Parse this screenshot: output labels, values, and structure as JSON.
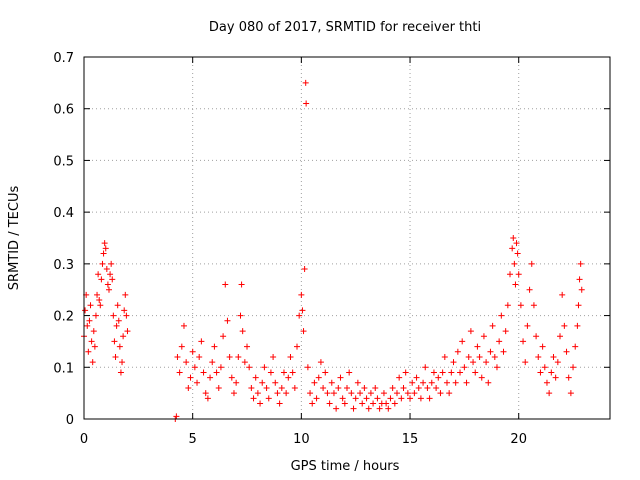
{
  "chart_data": {
    "type": "scatter",
    "title": "Day 080 of 2017, SRMTID for receiver thti",
    "xlabel": "GPS time / hours",
    "ylabel": "SRMTID / TECUs",
    "xlim": [
      0,
      24.2
    ],
    "ylim": [
      0,
      0.7
    ],
    "xticks": [
      0,
      5,
      10,
      15,
      20
    ],
    "yticks": [
      0,
      0.1,
      0.2,
      0.3,
      0.4,
      0.5,
      0.6,
      0.7
    ],
    "grid": true,
    "marker": "+",
    "color": "#ff0000",
    "series": [
      {
        "name": "SRMTID",
        "points": [
          [
            0.0,
            0.16
          ],
          [
            0.05,
            0.21
          ],
          [
            0.1,
            0.24
          ],
          [
            0.15,
            0.18
          ],
          [
            0.2,
            0.13
          ],
          [
            0.25,
            0.19
          ],
          [
            0.3,
            0.22
          ],
          [
            0.35,
            0.15
          ],
          [
            0.4,
            0.11
          ],
          [
            0.45,
            0.17
          ],
          [
            0.5,
            0.14
          ],
          [
            0.55,
            0.2
          ],
          [
            0.6,
            0.24
          ],
          [
            0.65,
            0.28
          ],
          [
            0.7,
            0.23
          ],
          [
            0.75,
            0.22
          ],
          [
            0.8,
            0.27
          ],
          [
            0.85,
            0.3
          ],
          [
            0.9,
            0.32
          ],
          [
            0.95,
            0.34
          ],
          [
            1.0,
            0.33
          ],
          [
            1.05,
            0.29
          ],
          [
            1.1,
            0.26
          ],
          [
            1.15,
            0.25
          ],
          [
            1.2,
            0.28
          ],
          [
            1.25,
            0.3
          ],
          [
            1.3,
            0.27
          ],
          [
            1.35,
            0.2
          ],
          [
            1.4,
            0.15
          ],
          [
            1.45,
            0.12
          ],
          [
            1.5,
            0.18
          ],
          [
            1.55,
            0.22
          ],
          [
            1.6,
            0.19
          ],
          [
            1.65,
            0.14
          ],
          [
            1.7,
            0.09
          ],
          [
            1.75,
            0.11
          ],
          [
            1.8,
            0.16
          ],
          [
            1.85,
            0.21
          ],
          [
            1.9,
            0.24
          ],
          [
            1.95,
            0.2
          ],
          [
            2.0,
            0.17
          ],
          [
            4.2,
            0.0
          ],
          [
            4.25,
            0.005
          ],
          [
            4.3,
            0.12
          ],
          [
            4.4,
            0.09
          ],
          [
            4.5,
            0.14
          ],
          [
            4.6,
            0.18
          ],
          [
            4.7,
            0.11
          ],
          [
            4.8,
            0.06
          ],
          [
            4.9,
            0.08
          ],
          [
            5.0,
            0.13
          ],
          [
            5.1,
            0.1
          ],
          [
            5.2,
            0.07
          ],
          [
            5.3,
            0.12
          ],
          [
            5.4,
            0.15
          ],
          [
            5.5,
            0.09
          ],
          [
            5.6,
            0.05
          ],
          [
            5.7,
            0.04
          ],
          [
            5.8,
            0.08
          ],
          [
            5.9,
            0.11
          ],
          [
            6.0,
            0.14
          ],
          [
            6.1,
            0.09
          ],
          [
            6.2,
            0.06
          ],
          [
            6.3,
            0.1
          ],
          [
            6.4,
            0.16
          ],
          [
            6.5,
            0.26
          ],
          [
            6.6,
            0.19
          ],
          [
            6.7,
            0.12
          ],
          [
            6.8,
            0.08
          ],
          [
            6.9,
            0.05
          ],
          [
            7.0,
            0.07
          ],
          [
            7.1,
            0.12
          ],
          [
            7.2,
            0.2
          ],
          [
            7.25,
            0.26
          ],
          [
            7.3,
            0.17
          ],
          [
            7.4,
            0.11
          ],
          [
            7.5,
            0.14
          ],
          [
            7.6,
            0.1
          ],
          [
            7.7,
            0.06
          ],
          [
            7.8,
            0.04
          ],
          [
            7.9,
            0.08
          ],
          [
            8.0,
            0.05
          ],
          [
            8.1,
            0.03
          ],
          [
            8.2,
            0.07
          ],
          [
            8.3,
            0.1
          ],
          [
            8.4,
            0.06
          ],
          [
            8.5,
            0.04
          ],
          [
            8.6,
            0.09
          ],
          [
            8.7,
            0.12
          ],
          [
            8.8,
            0.07
          ],
          [
            8.9,
            0.05
          ],
          [
            9.0,
            0.03
          ],
          [
            9.1,
            0.06
          ],
          [
            9.2,
            0.09
          ],
          [
            9.3,
            0.05
          ],
          [
            9.4,
            0.08
          ],
          [
            9.5,
            0.12
          ],
          [
            9.6,
            0.09
          ],
          [
            9.7,
            0.06
          ],
          [
            9.8,
            0.14
          ],
          [
            9.9,
            0.2
          ],
          [
            10.0,
            0.24
          ],
          [
            10.05,
            0.21
          ],
          [
            10.1,
            0.17
          ],
          [
            10.15,
            0.29
          ],
          [
            10.2,
            0.65
          ],
          [
            10.22,
            0.61
          ],
          [
            10.3,
            0.1
          ],
          [
            10.4,
            0.05
          ],
          [
            10.5,
            0.03
          ],
          [
            10.6,
            0.07
          ],
          [
            10.7,
            0.04
          ],
          [
            10.8,
            0.08
          ],
          [
            10.9,
            0.11
          ],
          [
            11.0,
            0.06
          ],
          [
            11.1,
            0.09
          ],
          [
            11.2,
            0.05
          ],
          [
            11.3,
            0.03
          ],
          [
            11.4,
            0.07
          ],
          [
            11.5,
            0.05
          ],
          [
            11.6,
            0.02
          ],
          [
            11.7,
            0.06
          ],
          [
            11.8,
            0.08
          ],
          [
            11.9,
            0.04
          ],
          [
            12.0,
            0.03
          ],
          [
            12.1,
            0.06
          ],
          [
            12.2,
            0.09
          ],
          [
            12.3,
            0.05
          ],
          [
            12.4,
            0.02
          ],
          [
            12.5,
            0.04
          ],
          [
            12.6,
            0.07
          ],
          [
            12.7,
            0.05
          ],
          [
            12.8,
            0.03
          ],
          [
            12.9,
            0.06
          ],
          [
            13.0,
            0.04
          ],
          [
            13.1,
            0.02
          ],
          [
            13.2,
            0.05
          ],
          [
            13.3,
            0.03
          ],
          [
            13.4,
            0.06
          ],
          [
            13.5,
            0.04
          ],
          [
            13.6,
            0.02
          ],
          [
            13.7,
            0.03
          ],
          [
            13.8,
            0.05
          ],
          [
            13.9,
            0.03
          ],
          [
            14.0,
            0.02
          ],
          [
            14.1,
            0.04
          ],
          [
            14.2,
            0.06
          ],
          [
            14.3,
            0.03
          ],
          [
            14.4,
            0.05
          ],
          [
            14.5,
            0.08
          ],
          [
            14.6,
            0.04
          ],
          [
            14.7,
            0.06
          ],
          [
            14.8,
            0.09
          ],
          [
            14.9,
            0.05
          ],
          [
            15.0,
            0.04
          ],
          [
            15.1,
            0.07
          ],
          [
            15.2,
            0.05
          ],
          [
            15.3,
            0.08
          ],
          [
            15.4,
            0.06
          ],
          [
            15.5,
            0.04
          ],
          [
            15.6,
            0.07
          ],
          [
            15.7,
            0.1
          ],
          [
            15.8,
            0.06
          ],
          [
            15.9,
            0.04
          ],
          [
            16.0,
            0.07
          ],
          [
            16.1,
            0.09
          ],
          [
            16.2,
            0.06
          ],
          [
            16.3,
            0.08
          ],
          [
            16.4,
            0.05
          ],
          [
            16.5,
            0.09
          ],
          [
            16.6,
            0.12
          ],
          [
            16.7,
            0.07
          ],
          [
            16.8,
            0.05
          ],
          [
            16.9,
            0.09
          ],
          [
            17.0,
            0.11
          ],
          [
            17.1,
            0.07
          ],
          [
            17.2,
            0.13
          ],
          [
            17.3,
            0.09
          ],
          [
            17.4,
            0.15
          ],
          [
            17.5,
            0.1
          ],
          [
            17.6,
            0.07
          ],
          [
            17.7,
            0.12
          ],
          [
            17.8,
            0.17
          ],
          [
            17.9,
            0.11
          ],
          [
            18.0,
            0.09
          ],
          [
            18.1,
            0.14
          ],
          [
            18.2,
            0.12
          ],
          [
            18.3,
            0.08
          ],
          [
            18.4,
            0.16
          ],
          [
            18.5,
            0.11
          ],
          [
            18.6,
            0.07
          ],
          [
            18.7,
            0.13
          ],
          [
            18.8,
            0.18
          ],
          [
            18.9,
            0.12
          ],
          [
            19.0,
            0.1
          ],
          [
            19.1,
            0.15
          ],
          [
            19.2,
            0.2
          ],
          [
            19.3,
            0.13
          ],
          [
            19.4,
            0.17
          ],
          [
            19.5,
            0.22
          ],
          [
            19.6,
            0.28
          ],
          [
            19.7,
            0.33
          ],
          [
            19.75,
            0.35
          ],
          [
            19.8,
            0.3
          ],
          [
            19.85,
            0.26
          ],
          [
            19.9,
            0.34
          ],
          [
            19.95,
            0.32
          ],
          [
            20.0,
            0.28
          ],
          [
            20.1,
            0.22
          ],
          [
            20.2,
            0.15
          ],
          [
            20.3,
            0.11
          ],
          [
            20.4,
            0.18
          ],
          [
            20.5,
            0.25
          ],
          [
            20.6,
            0.3
          ],
          [
            20.7,
            0.22
          ],
          [
            20.8,
            0.16
          ],
          [
            20.9,
            0.12
          ],
          [
            21.0,
            0.09
          ],
          [
            21.1,
            0.14
          ],
          [
            21.2,
            0.1
          ],
          [
            21.3,
            0.07
          ],
          [
            21.4,
            0.05
          ],
          [
            21.5,
            0.09
          ],
          [
            21.6,
            0.12
          ],
          [
            21.7,
            0.08
          ],
          [
            21.8,
            0.11
          ],
          [
            21.9,
            0.16
          ],
          [
            22.0,
            0.24
          ],
          [
            22.1,
            0.18
          ],
          [
            22.2,
            0.13
          ],
          [
            22.3,
            0.08
          ],
          [
            22.4,
            0.05
          ],
          [
            22.5,
            0.1
          ],
          [
            22.6,
            0.14
          ],
          [
            22.7,
            0.18
          ],
          [
            22.75,
            0.22
          ],
          [
            22.8,
            0.27
          ],
          [
            22.85,
            0.3
          ],
          [
            22.9,
            0.25
          ]
        ]
      }
    ]
  }
}
